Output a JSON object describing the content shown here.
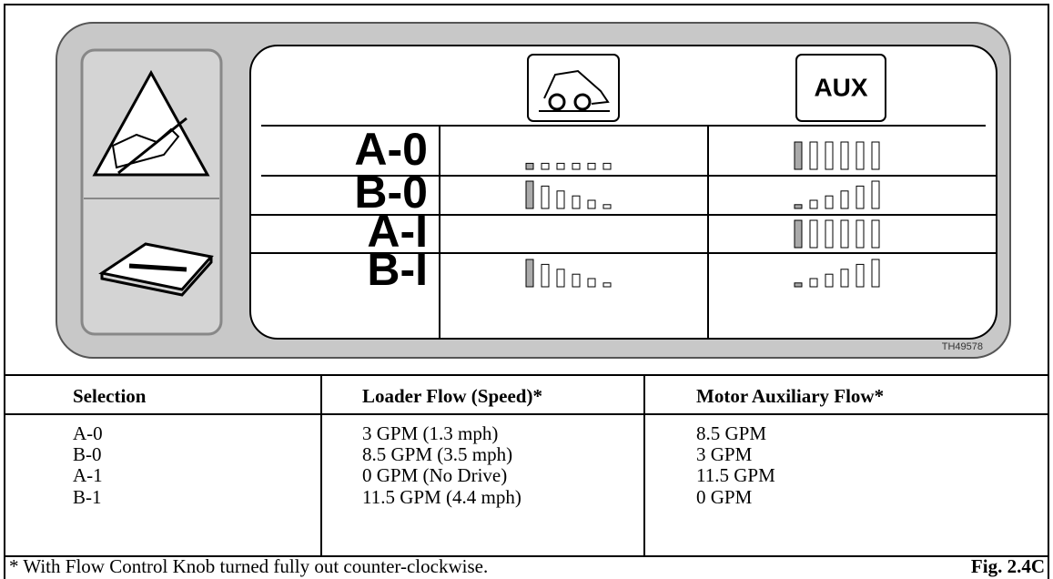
{
  "decal": {
    "aux_label": "AUX",
    "rows": [
      "A-0",
      "B-0",
      "A-I",
      "B-I"
    ],
    "code": "TH49578"
  },
  "table": {
    "headers": [
      "Selection",
      "Loader Flow (Speed)*",
      "Motor Auxiliary Flow*"
    ],
    "rows": [
      [
        "A-0",
        "3 GPM (1.3 mph)",
        "8.5 GPM"
      ],
      [
        "B-0",
        "8.5 GPM (3.5 mph)",
        "3 GPM"
      ],
      [
        "A-1",
        "0 GPM (No Drive)",
        "11.5 GPM"
      ],
      [
        "B-1",
        "11.5 GPM (4.4 mph)",
        "0 GPM"
      ]
    ]
  },
  "footnote": "* With Flow Control Knob turned fully out counter-clockwise.",
  "figure_label": "Fig. 2.4C"
}
